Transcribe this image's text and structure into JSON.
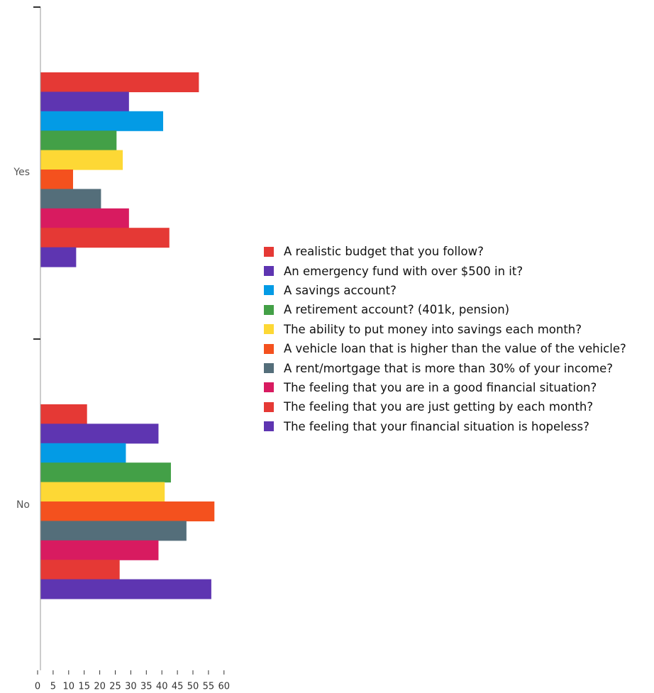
{
  "chart_data": {
    "type": "bar",
    "orientation": "horizontal",
    "categories": [
      "Yes",
      "No"
    ],
    "xlim": [
      0,
      60
    ],
    "x_ticks": [
      "0",
      "5",
      "10",
      "15",
      "20",
      "25",
      "30",
      "35",
      "40",
      "45",
      "50",
      "55",
      "60"
    ],
    "grid": false,
    "legend_position": "right",
    "series": [
      {
        "name": "A realistic budget that you follow?",
        "color": "#e53935",
        "values": [
          51,
          15
        ]
      },
      {
        "name": "An emergency fund with over $500 in it?",
        "color": "#5e35b1",
        "values": [
          28.5,
          38
        ]
      },
      {
        "name": "A savings account?",
        "color": "#039be5",
        "values": [
          39.5,
          27.5
        ]
      },
      {
        "name": "A retirement account? (401k, pension)",
        "color": "#43a047",
        "values": [
          24.5,
          42
        ]
      },
      {
        "name": "The ability to put money into savings each month?",
        "color": "#fdd835",
        "values": [
          26.5,
          40
        ]
      },
      {
        "name": "A vehicle loan that is higher than the value of the vehicle?",
        "color": "#f4511e",
        "values": [
          10.5,
          56
        ]
      },
      {
        "name": "A rent/mortgage that is more than 30% of your income?",
        "color": "#546e7a",
        "values": [
          19.5,
          47
        ]
      },
      {
        "name": "The feeling that you are in a good financial situation?",
        "color": "#d81b60",
        "values": [
          28.5,
          38
        ]
      },
      {
        "name": "The feeling that you are just getting by each month?",
        "color": "#e53935",
        "values": [
          41.5,
          25.5
        ]
      },
      {
        "name": "The feeling that your financial situation is hopeless?",
        "color": "#5e35b1",
        "values": [
          11.5,
          55
        ]
      }
    ]
  }
}
